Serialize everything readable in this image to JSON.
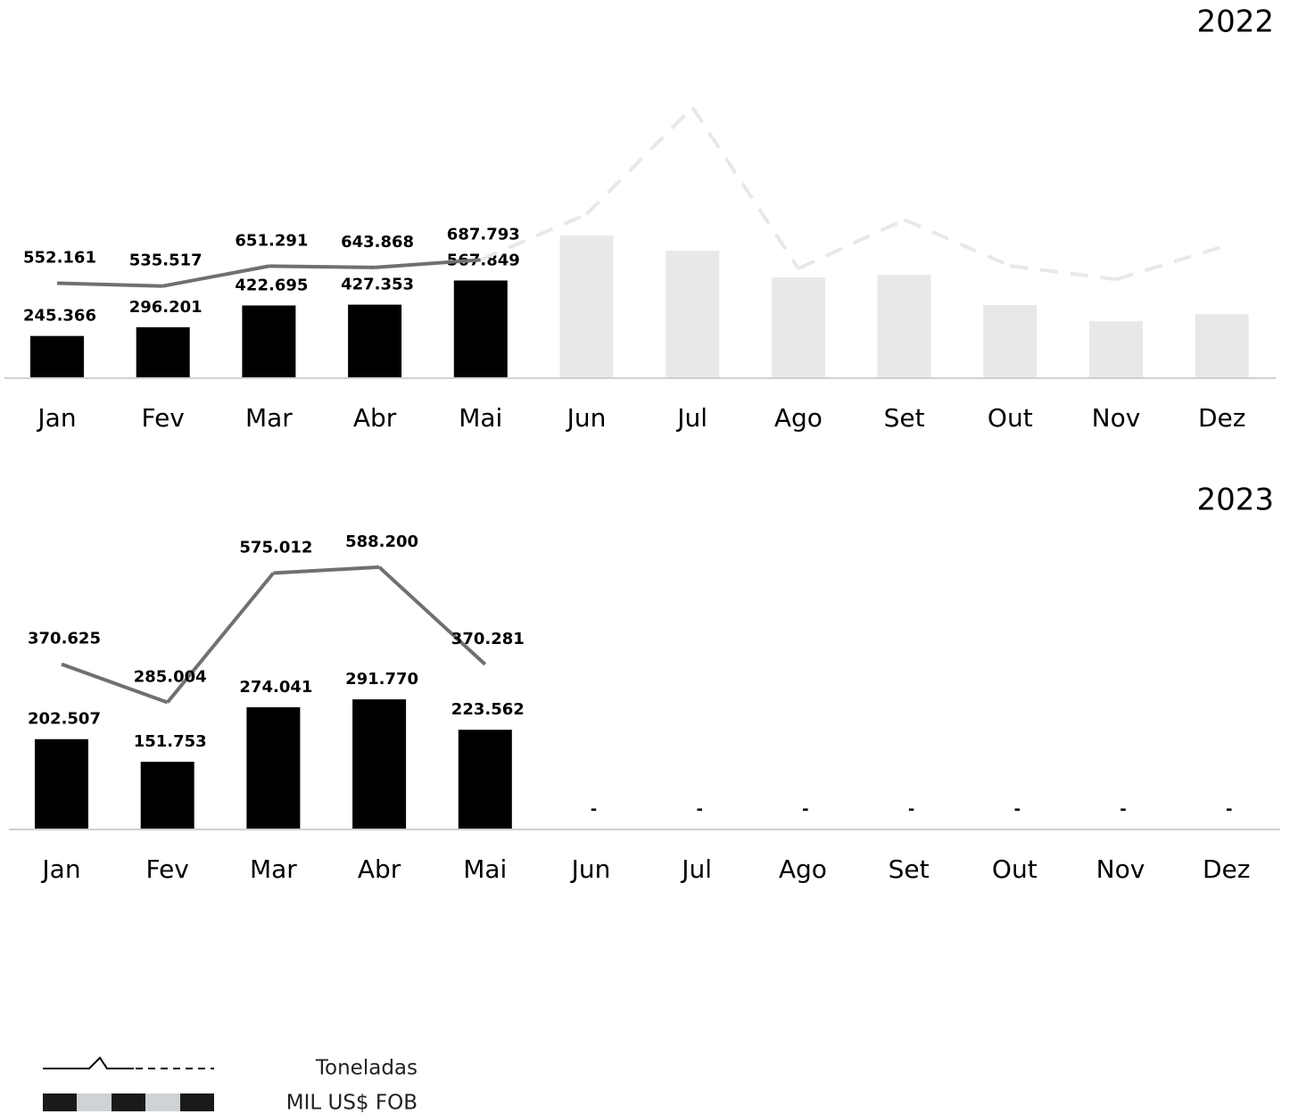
{
  "chart_data": [
    {
      "type": "bar",
      "title": "2022",
      "categories": [
        "Jan",
        "Fev",
        "Mar",
        "Abr",
        "Mai",
        "Jun",
        "Jul",
        "Ago",
        "Set",
        "Out",
        "Nov",
        "Dez"
      ],
      "ylim": [
        0,
        1680000
      ],
      "series": [
        {
          "name": "MIL US$ FOB",
          "type": "bar",
          "color": "#000000",
          "colors": [
            "#000000",
            "#000000",
            "#000000",
            "#000000",
            "#000000",
            "#e8e8e8",
            "#e8e8e8",
            "#e8e8e8",
            "#e8e8e8",
            "#e8e8e8",
            "#e8e8e8",
            "#e8e8e8"
          ],
          "values": [
            245366,
            296201,
            422695,
            427353,
            567849,
            829000,
            741000,
            585000,
            601000,
            425000,
            331000,
            373000
          ],
          "value_labels": [
            "245.366",
            "296.201",
            "422.695",
            "427.353",
            "567.849",
            null,
            null,
            null,
            null,
            null,
            null,
            null
          ]
        },
        {
          "name": "Toneladas",
          "type": "line",
          "color": "#707070",
          "colors": [
            "#707070",
            "#707070",
            "#707070",
            "#707070",
            "#707070",
            "#e8e8e8",
            "#e8e8e8",
            "#e8e8e8",
            "#e8e8e8",
            "#e8e8e8",
            "#e8e8e8",
            "#e8e8e8"
          ],
          "styles": [
            "solid",
            "solid",
            "solid",
            "solid",
            "solid",
            "dashed",
            "dashed",
            "dashed",
            "dashed",
            "dashed",
            "dashed",
            "dashed"
          ],
          "values": [
            552161,
            535517,
            651291,
            643868,
            687793,
            953000,
            1574000,
            637000,
            921000,
            653000,
            574000,
            763000
          ],
          "value_labels": [
            "552.161",
            "535.517",
            "651.291",
            "643.868",
            "687.793",
            null,
            null,
            null,
            null,
            null,
            null,
            null
          ]
        }
      ]
    },
    {
      "type": "bar",
      "title": "2023",
      "categories": [
        "Jan",
        "Fev",
        "Mar",
        "Abr",
        "Mai",
        "Jun",
        "Jul",
        "Ago",
        "Set",
        "Out",
        "Nov",
        "Dez"
      ],
      "ylim": [
        0,
        660000
      ],
      "series": [
        {
          "type": "bar",
          "color": "#000000",
          "values": [
            202507,
            151753,
            274041,
            291770,
            223562,
            null,
            null,
            null,
            null,
            null,
            null,
            null
          ],
          "value_labels": [
            "202.507",
            "151.753",
            "274.041",
            "291.770",
            "223.562",
            "-",
            "-",
            "-",
            "-",
            "-",
            "-",
            "-"
          ]
        },
        {
          "type": "line",
          "color": "#707070",
          "values": [
            370625,
            285004,
            575012,
            588200,
            370281,
            null,
            null,
            null,
            null,
            null,
            null,
            null
          ],
          "value_labels": [
            "370.625",
            "285.004",
            "575.012",
            "588.200",
            "370.281",
            null,
            null,
            null,
            null,
            null,
            null,
            null
          ]
        }
      ]
    }
  ]
}
